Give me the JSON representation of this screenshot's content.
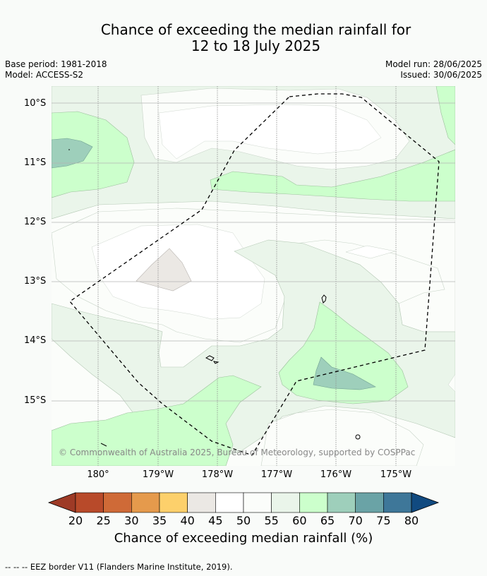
{
  "header": {
    "title_line1": "Chance of exceeding the median rainfall for",
    "title_line2": "12 to 18 July 2025",
    "base_period": "Base period: 1981-2018",
    "model": "Model: ACCESS-S2",
    "model_run": "Model run: 28/06/2025",
    "issued": "Issued: 30/06/2025"
  },
  "map": {
    "lat_labels": [
      "10°S",
      "11°S",
      "12°S",
      "13°S",
      "14°S",
      "15°S"
    ],
    "lon_labels": [
      "180°",
      "179°W",
      "178°W",
      "177°W",
      "176°W",
      "175°W"
    ],
    "copyright": "© Commonwealth of Australia 2025, Bureau of Meteorology, supported by COSPPac"
  },
  "colorbar": {
    "ticks": [
      "20",
      "25",
      "30",
      "35",
      "40",
      "45",
      "50",
      "55",
      "60",
      "65",
      "70",
      "75",
      "80"
    ],
    "colors": [
      "#9e3a26",
      "#b84a2a",
      "#cf6a37",
      "#e59a4c",
      "#fdd06b",
      "#ebe8e4",
      "#ffffff",
      "#fbfdfa",
      "#eaf5ea",
      "#ccffcc",
      "#9ecfbb",
      "#6aa3a6",
      "#3e7799",
      "#114a80"
    ],
    "label": "Chance of exceeding median rainfall (%)"
  },
  "legend": {
    "eez_note": "--  --  -- EEZ border V11 (Flanders Marine Institute, 2019)."
  }
}
